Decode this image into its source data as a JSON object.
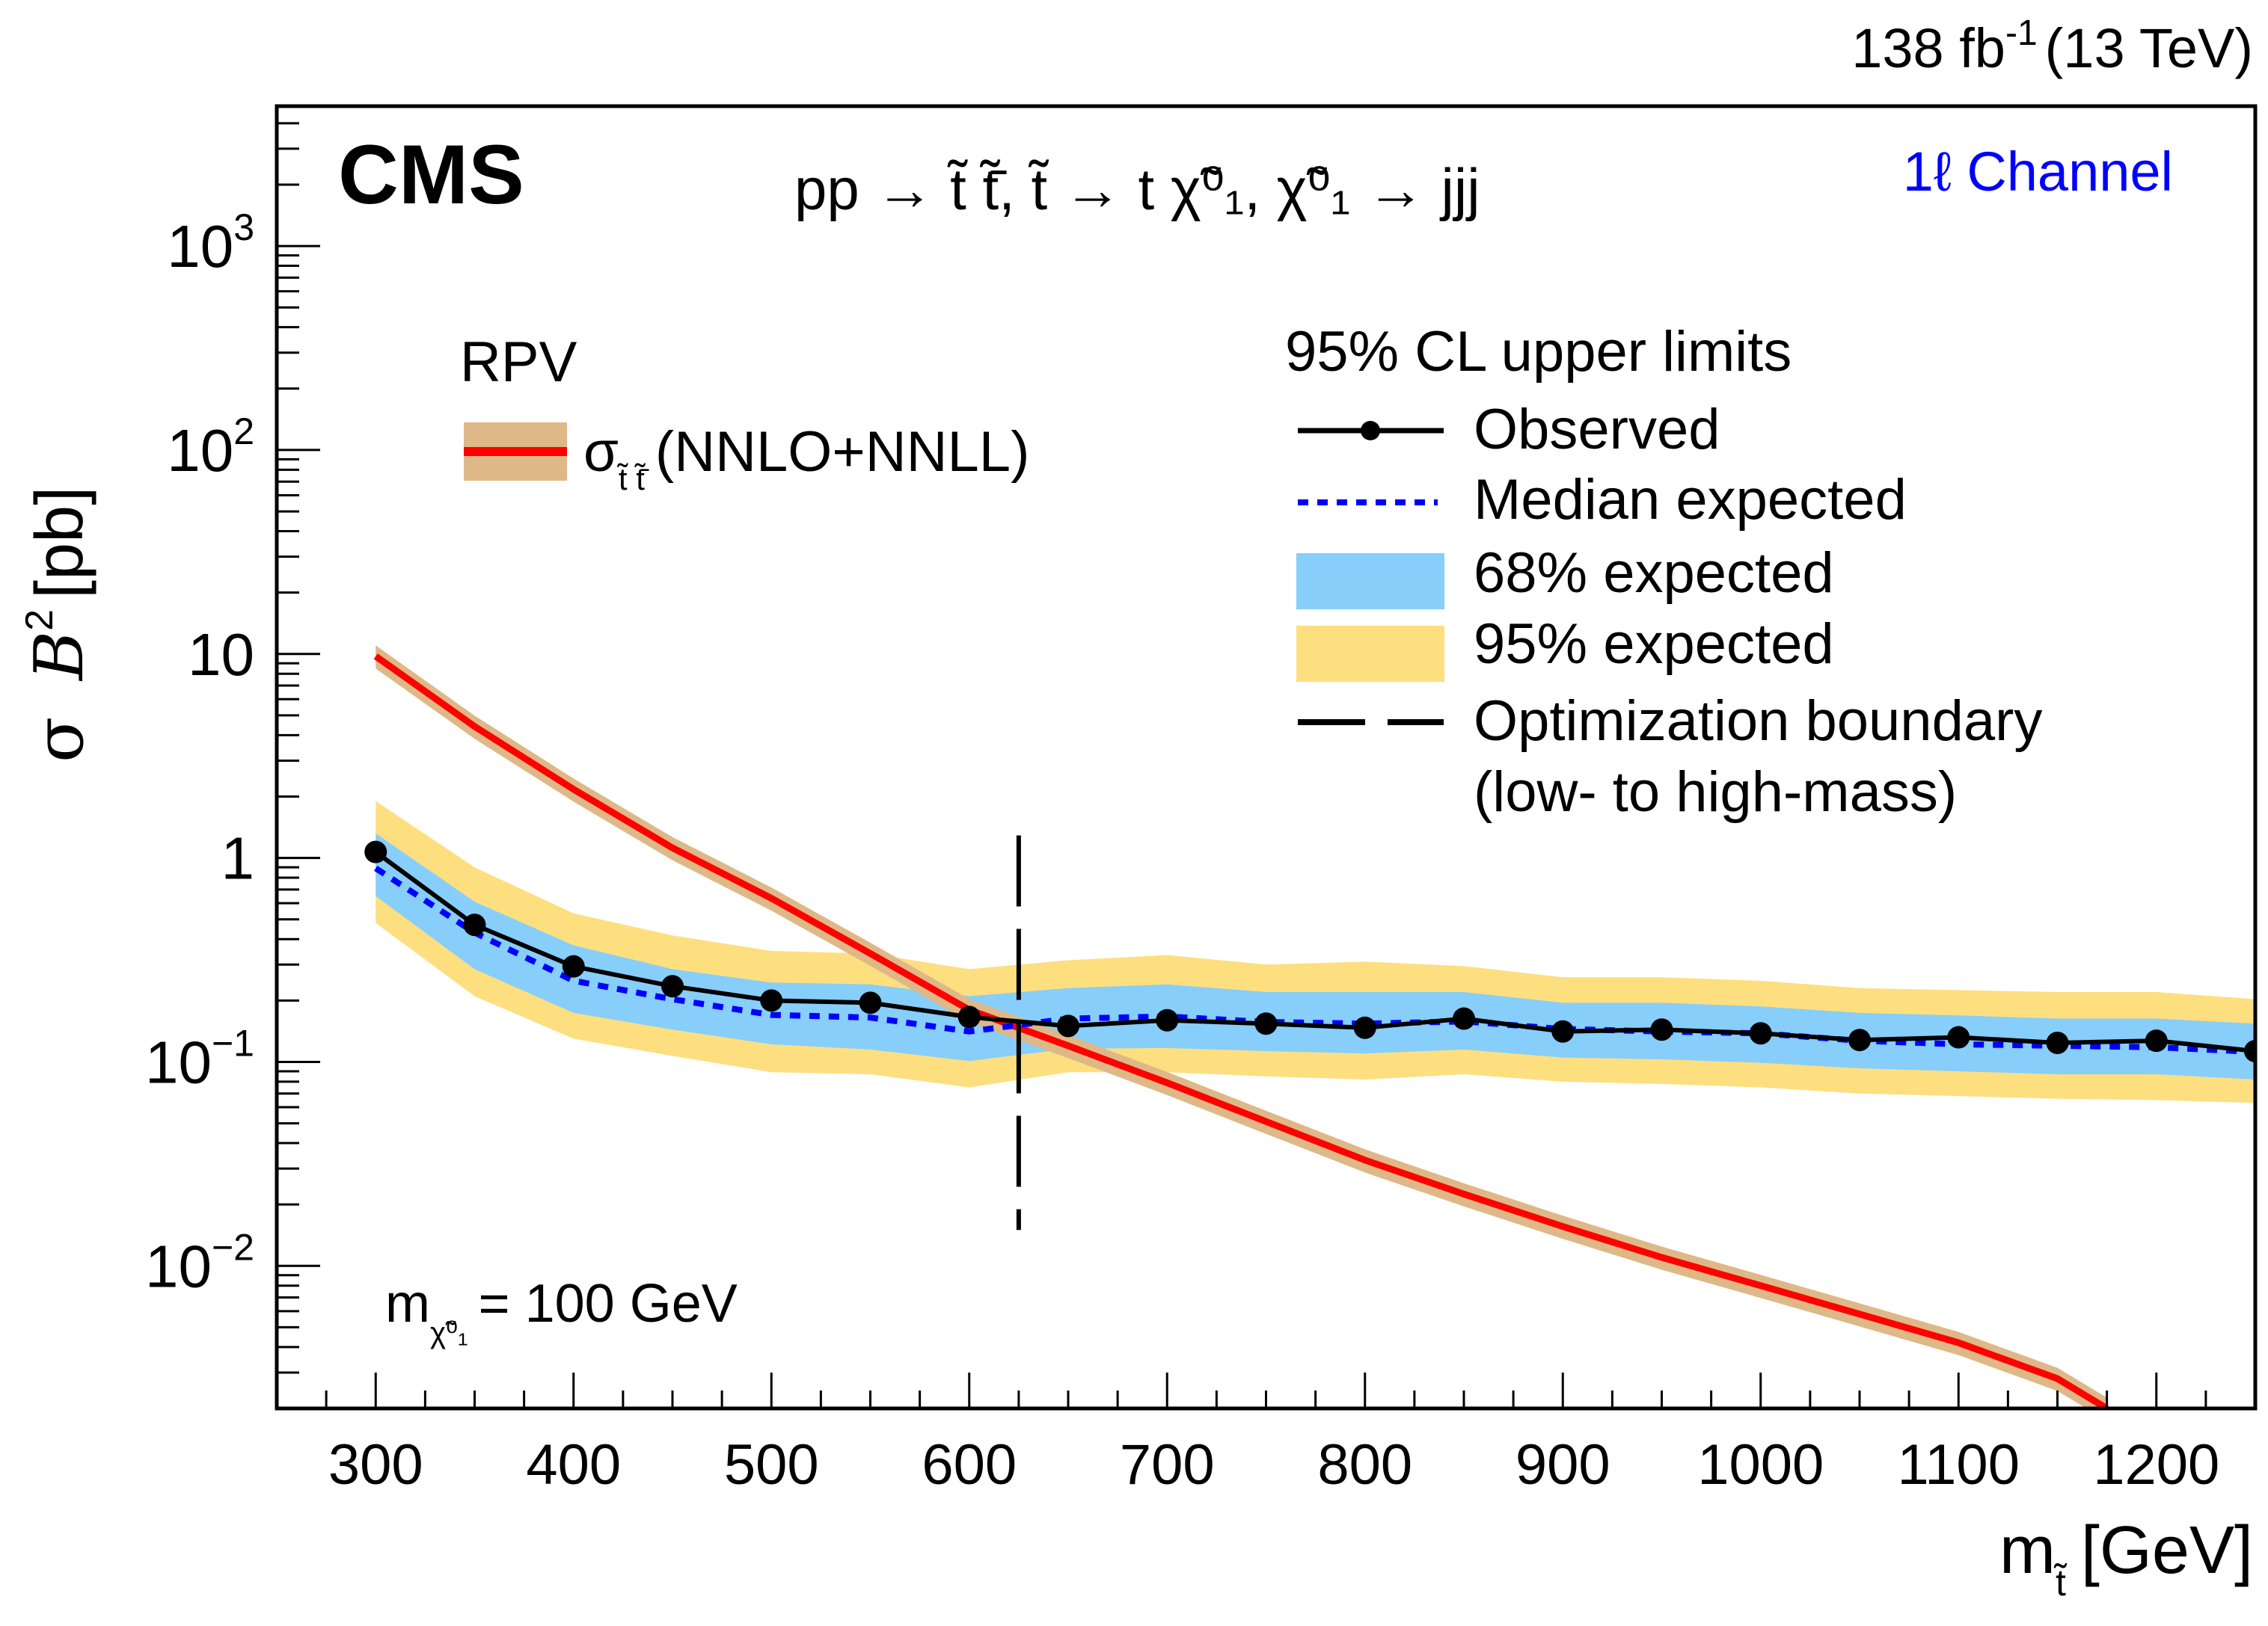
{
  "header": {
    "lumi_label": "138 fb",
    "lumi_sup": "-1",
    "energy_label": "(13 TeV)",
    "experiment": "CMS",
    "process_label": "pp → t̃ t̃̄, t̃ → t χ̃⁰₁, χ̃⁰₁ → jjj",
    "channel_label": "1ℓ Channel",
    "mass_label_prefix": "m",
    "mass_label_sub": "χ̃⁰₁",
    "mass_label_value": "= 100 GeV"
  },
  "legend_theory": {
    "title": "RPV",
    "entry_symbol": "σ",
    "entry_sub": "t̃ t̃̄",
    "entry_text": "(NNLO+NNLL)"
  },
  "legend_limits": {
    "title": "95% CL upper limits",
    "observed": "Observed",
    "median": "Median expected",
    "band68": "68% expected",
    "band95": "95% expected",
    "boundary_line1": "Optimization boundary",
    "boundary_line2": "(low- to high-mass)"
  },
  "colors": {
    "observed": "#000000",
    "median": "#0000ff",
    "band68": "#87cefa",
    "band95": "#fddf80",
    "theory_line": "#ff0000",
    "theory_band": "#deb887",
    "channel_text": "#0000ff"
  },
  "chart_data": {
    "type": "line",
    "title": "pp → t̃ t̃̄, t̃ → t χ̃⁰₁, χ̃⁰₁ → jjj",
    "xlabel": "m_t̃ [GeV]",
    "ylabel": "σ B² [pb]",
    "xlim": [
      250,
      1250
    ],
    "ylim": [
      0.002,
      4850
    ],
    "yscale": "log",
    "x_ticks": [
      300,
      400,
      500,
      600,
      700,
      800,
      900,
      1000,
      1100,
      1200
    ],
    "x_tick_labels": [
      "300",
      "400",
      "500",
      "600",
      "700",
      "800",
      "900",
      "1000",
      "1100",
      "1200"
    ],
    "y_ticks": [
      0.01,
      0.1,
      1,
      10,
      100,
      1000
    ],
    "y_tick_labels": [
      {
        "base": "10",
        "exp": "−2"
      },
      {
        "base": "10",
        "exp": "−1"
      },
      {
        "base": "1",
        "exp": ""
      },
      {
        "base": "10",
        "exp": ""
      },
      {
        "base": "10",
        "exp": "2"
      },
      {
        "base": "10",
        "exp": "3"
      }
    ],
    "x": [
      300,
      350,
      400,
      450,
      500,
      550,
      600,
      650,
      700,
      750,
      800,
      850,
      900,
      950,
      1000,
      1050,
      1100,
      1150,
      1200,
      1250
    ],
    "series": [
      {
        "name": "Observed",
        "values": [
          1.07,
          0.47,
          0.294,
          0.235,
          0.2,
          0.195,
          0.166,
          0.15,
          0.16,
          0.154,
          0.147,
          0.163,
          0.141,
          0.144,
          0.138,
          0.128,
          0.132,
          0.124,
          0.127,
          0.113
        ]
      },
      {
        "name": "Median expected",
        "values": [
          0.89,
          0.43,
          0.25,
          0.203,
          0.17,
          0.165,
          0.141,
          0.163,
          0.167,
          0.157,
          0.154,
          0.158,
          0.145,
          0.141,
          0.138,
          0.127,
          0.122,
          0.12,
          0.118,
          0.112
        ]
      },
      {
        "name": "68% expected (upper)",
        "values": [
          1.32,
          0.61,
          0.373,
          0.285,
          0.245,
          0.24,
          0.21,
          0.23,
          0.24,
          0.22,
          0.22,
          0.22,
          0.195,
          0.195,
          0.187,
          0.174,
          0.169,
          0.163,
          0.163,
          0.154
        ]
      },
      {
        "name": "68% expected (lower)",
        "values": [
          0.65,
          0.285,
          0.174,
          0.144,
          0.122,
          0.115,
          0.101,
          0.116,
          0.117,
          0.113,
          0.11,
          0.115,
          0.105,
          0.103,
          0.099,
          0.093,
          0.09,
          0.087,
          0.087,
          0.082
        ]
      },
      {
        "name": "95% expected (upper)",
        "values": [
          1.9,
          0.9,
          0.535,
          0.417,
          0.35,
          0.34,
          0.285,
          0.315,
          0.334,
          0.3,
          0.31,
          0.295,
          0.26,
          0.26,
          0.25,
          0.23,
          0.225,
          0.22,
          0.22,
          0.203
        ]
      },
      {
        "name": "95% expected (lower)",
        "values": [
          0.48,
          0.21,
          0.13,
          0.107,
          0.089,
          0.087,
          0.075,
          0.089,
          0.089,
          0.085,
          0.082,
          0.087,
          0.08,
          0.078,
          0.075,
          0.07,
          0.068,
          0.066,
          0.065,
          0.063
        ]
      }
    ],
    "theory": {
      "name": "σ t̃t̃̄ (NNLO+NNLL)",
      "x": [
        300,
        350,
        400,
        450,
        500,
        550,
        600,
        650,
        700,
        750,
        800,
        850,
        900,
        950,
        1000,
        1050,
        1100,
        1150,
        1175
      ],
      "values": [
        9.75,
        4.41,
        2.17,
        1.12,
        0.634,
        0.34,
        0.18,
        0.12,
        0.079,
        0.051,
        0.033,
        0.0225,
        0.0156,
        0.011,
        0.008,
        0.0058,
        0.0042,
        0.0028,
        0.002
      ],
      "relative_uncertainty": 0.13
    },
    "boundary": {
      "x": 625,
      "ymin": 0.015,
      "ymax": 1.29
    },
    "legend_placement": [
      "top-left (theory)",
      "top-right (limits)"
    ],
    "grid": false
  }
}
